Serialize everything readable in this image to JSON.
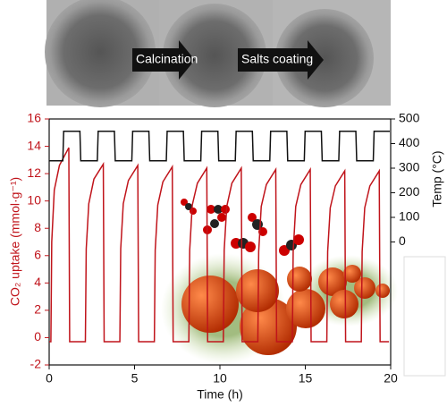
{
  "chart_data": {
    "type": "line",
    "annotations": [
      "Calcination",
      "Salts coating"
    ],
    "xlabel": "Time (h)",
    "ylabel": "CO₂ uptake (mmol·g⁻¹)",
    "y2label": "Temp (°C)",
    "xlim": [
      0,
      20
    ],
    "xticks": [
      0,
      5,
      10,
      15,
      20
    ],
    "ylim": [
      -2,
      16
    ],
    "yticks": [
      -2,
      0,
      2,
      4,
      6,
      8,
      10,
      12,
      14,
      16
    ],
    "y2lim": [
      -500,
      500
    ],
    "y2ticks": [
      0,
      100,
      200,
      300,
      400,
      500
    ],
    "series": [
      {
        "color": "#c0141b",
        "axis": "y",
        "x": [
          0,
          0.1,
          0.15,
          0.3,
          0.6,
          1.15,
          1.2,
          2.12,
          2.17,
          2.32,
          2.62,
          3.17,
          3.22,
          4.14,
          4.19,
          4.34,
          4.64,
          5.19,
          5.24,
          6.16,
          6.21,
          6.36,
          6.66,
          7.21,
          7.26,
          8.18,
          8.23,
          8.38,
          8.68,
          9.23,
          9.28,
          10.2,
          10.25,
          10.4,
          10.7,
          11.25,
          11.3,
          12.22,
          12.27,
          12.42,
          12.72,
          13.27,
          13.32,
          14.24,
          14.29,
          14.44,
          14.74,
          15.29,
          15.34,
          16.26,
          16.31,
          16.46,
          16.76,
          17.31,
          17.36,
          18.28,
          18.33,
          18.48,
          18.78,
          19.33,
          19.38,
          19.9
        ],
        "values": [
          -0.3,
          -0.3,
          7,
          10.8,
          12.6,
          13.9,
          -0.3,
          -0.3,
          6.5,
          9.8,
          11.6,
          12.7,
          -0.3,
          -0.3,
          6.5,
          9.8,
          11.5,
          12.6,
          -0.3,
          -0.3,
          6.4,
          9.7,
          11.4,
          12.5,
          -0.3,
          -0.3,
          6.4,
          9.7,
          11.3,
          12.4,
          -0.3,
          -0.3,
          6.4,
          9.6,
          11.3,
          12.4,
          -0.3,
          -0.3,
          6.3,
          9.6,
          11.2,
          12.3,
          -0.3,
          -0.3,
          6.3,
          9.6,
          11.2,
          12.3,
          -0.3,
          -0.3,
          6.3,
          9.5,
          11.1,
          12.2,
          -0.3,
          -0.3,
          6.3,
          9.5,
          11.1,
          12.2,
          -0.3,
          -0.3
        ]
      },
      {
        "color": "#111111",
        "axis": "y2",
        "x": [
          0,
          0.8,
          0.85,
          1.8,
          1.85,
          2.82,
          2.87,
          3.82,
          3.87,
          4.84,
          4.89,
          5.84,
          5.89,
          6.86,
          6.91,
          7.86,
          7.91,
          8.88,
          8.93,
          9.88,
          9.93,
          10.9,
          10.95,
          11.9,
          11.95,
          12.92,
          12.97,
          13.92,
          13.97,
          14.94,
          14.99,
          15.94,
          15.99,
          16.96,
          17.01,
          17.96,
          18.01,
          18.98,
          19.03,
          19.95
        ],
        "values": [
          330,
          330,
          450,
          450,
          330,
          330,
          450,
          450,
          330,
          330,
          450,
          450,
          330,
          330,
          450,
          450,
          330,
          330,
          450,
          450,
          330,
          330,
          450,
          450,
          330,
          330,
          450,
          450,
          330,
          330,
          450,
          450,
          330,
          330,
          450,
          450,
          330,
          330,
          450,
          450
        ]
      }
    ]
  }
}
